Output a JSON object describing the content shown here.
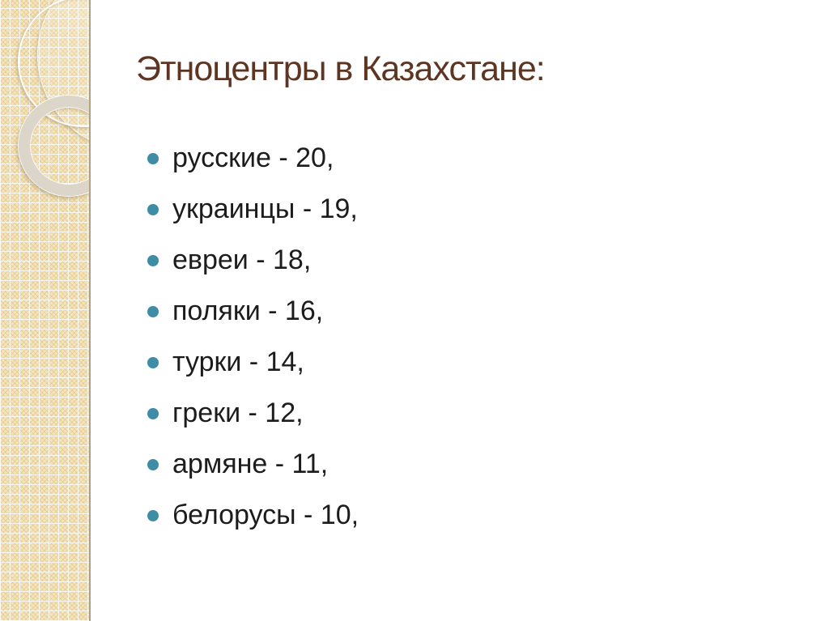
{
  "slide": {
    "title": "Этноцентры в Казахстане:",
    "items": [
      {
        "label": "русские - 20,"
      },
      {
        "label": "украинцы - 19,"
      },
      {
        "label": "евреи - 18,"
      },
      {
        "label": "поляки - 16,"
      },
      {
        "label": "турки - 14,"
      },
      {
        "label": "греки - 12,"
      },
      {
        "label": "армяне - 11,"
      },
      {
        "label": "белорусы - 10,"
      }
    ],
    "colors": {
      "title_text": "#5e3522",
      "body_text": "#1c1c1c",
      "bullet": "#3f8ca6",
      "sidebar_base": "#f4e5bd",
      "sidebar_edge": "#b2a27b",
      "ring": "#dbd6c9"
    }
  }
}
